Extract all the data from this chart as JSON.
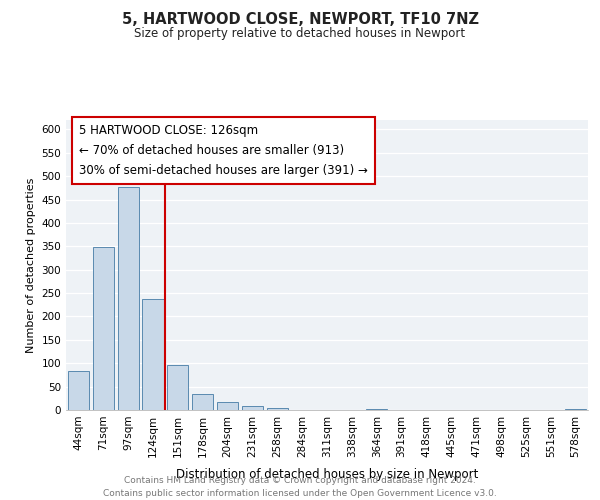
{
  "title": "5, HARTWOOD CLOSE, NEWPORT, TF10 7NZ",
  "subtitle": "Size of property relative to detached houses in Newport",
  "xlabel": "Distribution of detached houses by size in Newport",
  "ylabel": "Number of detached properties",
  "bar_labels": [
    "44sqm",
    "71sqm",
    "97sqm",
    "124sqm",
    "151sqm",
    "178sqm",
    "204sqm",
    "231sqm",
    "258sqm",
    "284sqm",
    "311sqm",
    "338sqm",
    "364sqm",
    "391sqm",
    "418sqm",
    "445sqm",
    "471sqm",
    "498sqm",
    "525sqm",
    "551sqm",
    "578sqm"
  ],
  "bar_values": [
    83,
    348,
    476,
    237,
    97,
    35,
    18,
    8,
    4,
    0,
    0,
    0,
    2,
    0,
    0,
    0,
    0,
    0,
    0,
    0,
    2
  ],
  "bar_color": "#c8d8e8",
  "bar_edge_color": "#5a8ab0",
  "vline_color": "#cc0000",
  "vline_pos": 3.5,
  "annotation_title": "5 HARTWOOD CLOSE: 126sqm",
  "annotation_line1": "← 70% of detached houses are smaller (913)",
  "annotation_line2": "30% of semi-detached houses are larger (391) →",
  "annotation_box_color": "#ffffff",
  "annotation_box_edgecolor": "#cc0000",
  "ylim": [
    0,
    620
  ],
  "yticks": [
    0,
    50,
    100,
    150,
    200,
    250,
    300,
    350,
    400,
    450,
    500,
    550,
    600
  ],
  "footer_line1": "Contains HM Land Registry data © Crown copyright and database right 2024.",
  "footer_line2": "Contains public sector information licensed under the Open Government Licence v3.0.",
  "bg_color": "#ffffff",
  "plot_bg_color": "#eef2f6",
  "title_fontsize": 10.5,
  "subtitle_fontsize": 8.5,
  "ylabel_fontsize": 8,
  "xlabel_fontsize": 8.5,
  "tick_fontsize": 7.5,
  "annot_fontsize": 8.5,
  "footer_fontsize": 6.5
}
